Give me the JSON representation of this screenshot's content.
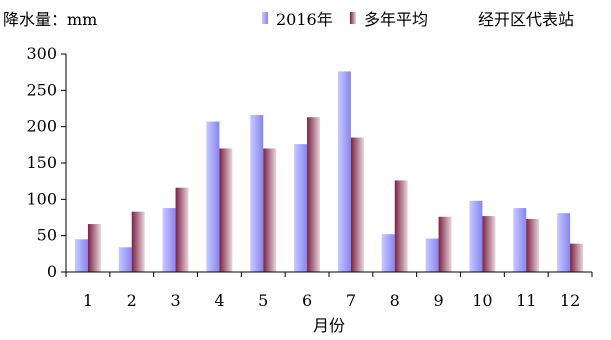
{
  "chart_data": {
    "type": "bar",
    "ylabel": "降水量：mm",
    "xlabel": "月份",
    "station": "经开区代表站",
    "categories": [
      "1",
      "2",
      "3",
      "4",
      "5",
      "6",
      "7",
      "8",
      "9",
      "10",
      "11",
      "12"
    ],
    "series": [
      {
        "name": "2016年",
        "color": "#9b9bff",
        "values": [
          45,
          34,
          88,
          207,
          216,
          176,
          276,
          52,
          46,
          98,
          88,
          81
        ]
      },
      {
        "name": "多年平均",
        "color": "#8b2f50",
        "values": [
          66,
          83,
          116,
          170,
          170,
          213,
          185,
          126,
          76,
          77,
          73,
          39
        ]
      }
    ],
    "yticks": [
      0,
      50,
      100,
      150,
      200,
      250,
      300
    ],
    "ylim": [
      0,
      300
    ],
    "grid": false,
    "legend_position": "top"
  }
}
